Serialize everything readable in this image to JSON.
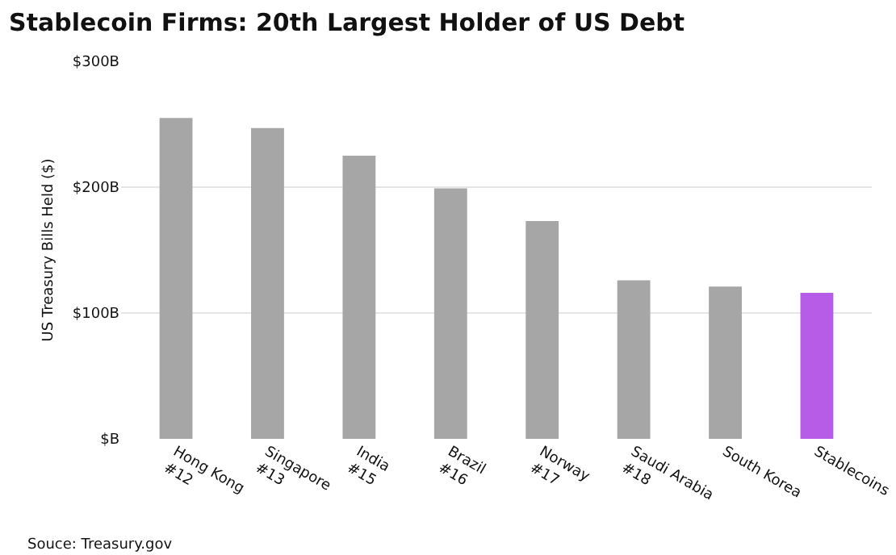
{
  "chart_data": {
    "type": "bar",
    "title": "Stablecoin Firms: 20th Largest Holder of US Debt",
    "ylabel": "US Treasury Bills Held ($)",
    "categories": [
      "Hong Kong\n#12",
      "Singapore\n#13",
      "India\n#15",
      "Brazil\n#16",
      "Norway\n#17",
      "Saudi Arabia\n#18",
      "South Korea",
      "Stablecoins"
    ],
    "values": [
      255,
      247,
      225,
      199,
      173,
      126,
      121,
      116
    ],
    "colors": [
      "#a6a6a6",
      "#a6a6a6",
      "#a6a6a6",
      "#a6a6a6",
      "#a6a6a6",
      "#a6a6a6",
      "#a6a6a6",
      "#b65ce6"
    ],
    "ylim": [
      0,
      300
    ],
    "yticks": [
      {
        "value": 0,
        "label": "$B"
      },
      {
        "value": 100,
        "label": "$100B"
      },
      {
        "value": 200,
        "label": "$200B"
      },
      {
        "value": 300,
        "label": "$300B"
      }
    ],
    "grid": "y",
    "annotations": [
      "Souce: Treasury.gov"
    ]
  }
}
